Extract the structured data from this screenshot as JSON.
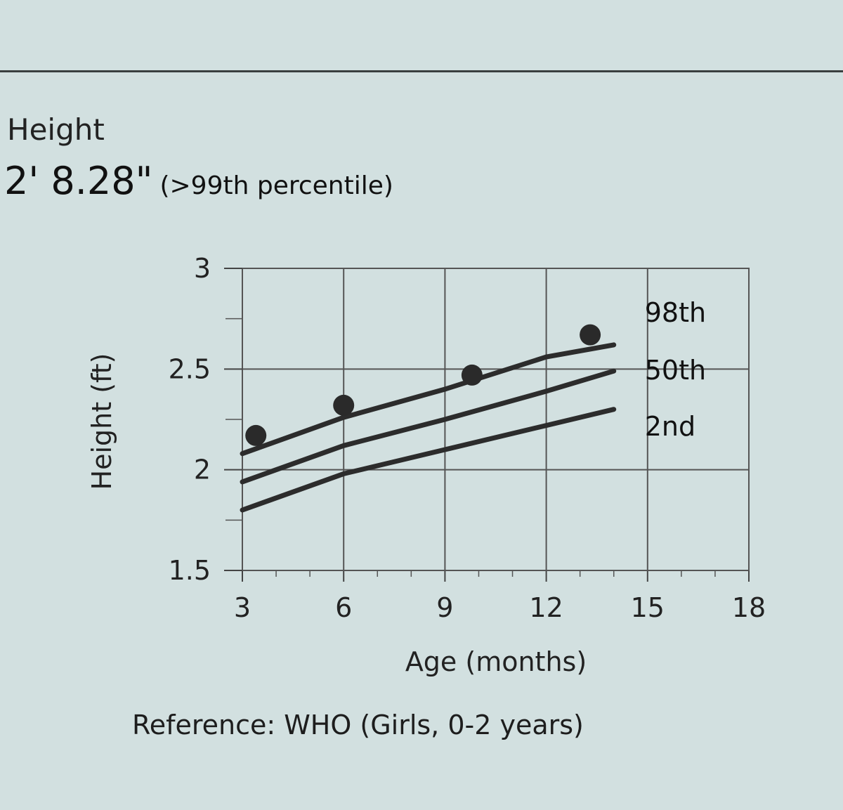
{
  "measurement": {
    "label": "Height",
    "value": "2' 8.28\"",
    "note": "(>99th percentile)"
  },
  "chart_data": {
    "type": "line",
    "xlabel": "Age (months)",
    "ylabel": "Height (ft)",
    "xlim": [
      3,
      18
    ],
    "ylim": [
      1.5,
      3
    ],
    "x_ticks": [
      3,
      6,
      9,
      12,
      15,
      18
    ],
    "x_tick_labels": [
      "3",
      "6",
      "9",
      "12",
      "15",
      "18"
    ],
    "y_ticks": [
      1.5,
      2,
      2.5,
      3
    ],
    "y_tick_labels": [
      "1.5",
      "2",
      "2.5",
      "3"
    ],
    "grid": true,
    "series": [
      {
        "name": "98th",
        "x": [
          3,
          6,
          9,
          12,
          14
        ],
        "y": [
          2.08,
          2.26,
          2.4,
          2.56,
          2.62
        ]
      },
      {
        "name": "50th",
        "x": [
          3,
          6,
          9,
          12,
          14
        ],
        "y": [
          1.94,
          2.12,
          2.25,
          2.39,
          2.49
        ]
      },
      {
        "name": "2nd",
        "x": [
          3,
          6,
          9,
          12,
          14
        ],
        "y": [
          1.8,
          1.98,
          2.1,
          2.22,
          2.3
        ]
      }
    ],
    "points": {
      "x": [
        3.4,
        6.0,
        9.8,
        13.3
      ],
      "y": [
        2.17,
        2.32,
        2.47,
        2.67
      ]
    }
  },
  "caption": "Reference: WHO (Girls, 0-2 years)"
}
